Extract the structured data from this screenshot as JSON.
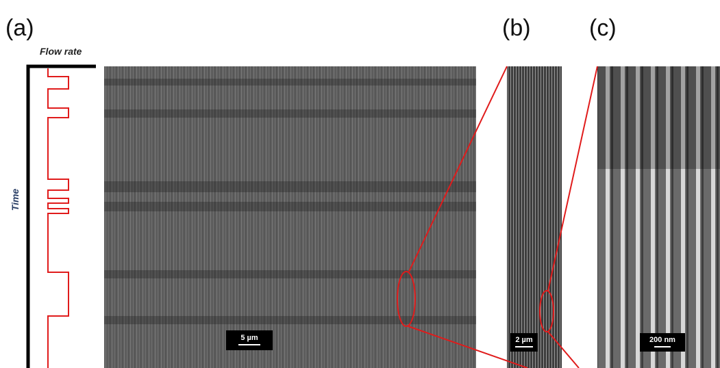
{
  "panels": [
    {
      "label": "(a)",
      "scale_bar": "5 µm"
    },
    {
      "label": "(b)",
      "scale_bar": "2 µm"
    },
    {
      "label": "(c)",
      "scale_bar": "200 nm"
    }
  ],
  "flow_profile": {
    "x_label": "Flow rate",
    "y_label": "Time"
  }
}
